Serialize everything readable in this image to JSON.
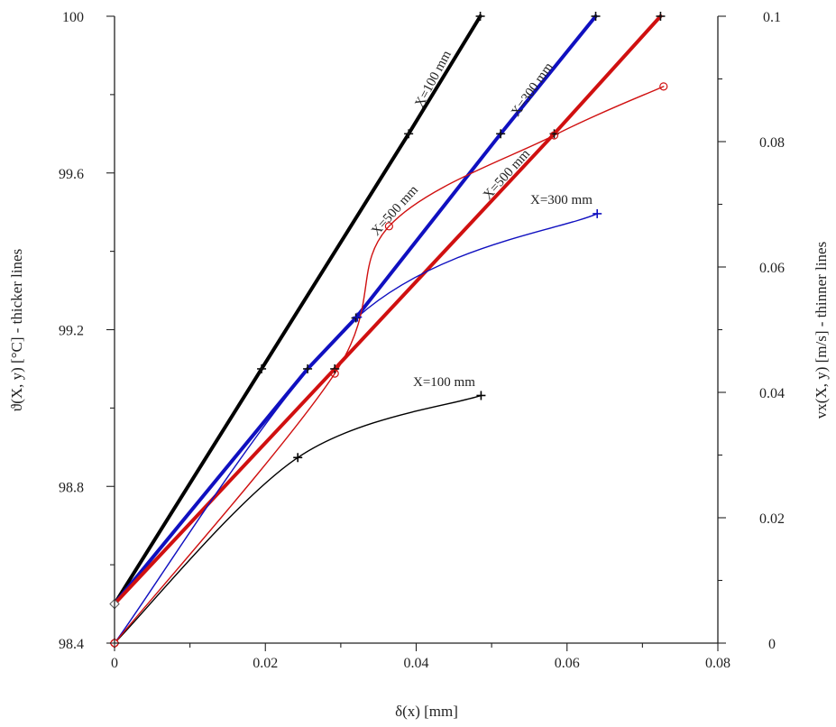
{
  "chart_data": {
    "type": "line",
    "xlabel": "δ(x) [mm]",
    "ylabel_left": "ϑ(X, y) [°C] - thicker lines",
    "ylabel_right": "vx(X, y) [m/s] - thinner lines",
    "xlim": [
      0,
      0.08
    ],
    "ylim_left": [
      98.4,
      100
    ],
    "ylim_right": [
      0,
      0.1
    ],
    "x_ticks": [
      "0",
      "0.02",
      "0.04",
      "0.06",
      "0.08"
    ],
    "y_left_ticks": [
      "98.4",
      "98.8",
      "99.2",
      "99.6",
      "100"
    ],
    "y_right_ticks": [
      "0",
      "0.02",
      "0.04",
      "0.06",
      "0.08",
      "0.1"
    ],
    "grid": false,
    "series": [
      {
        "name": "X=100 mm",
        "axis": "left",
        "style": "thick",
        "color": "#000000",
        "x": [
          0,
          0.0195,
          0.039,
          0.0485
        ],
        "y": [
          98.5,
          99.1,
          99.7,
          100.0
        ]
      },
      {
        "name": "X=300 mm",
        "axis": "left",
        "style": "thick",
        "color": "#1010c0",
        "x": [
          0,
          0.0256,
          0.032,
          0.0512,
          0.0638
        ],
        "y": [
          98.5,
          99.1,
          99.23,
          99.7,
          100.0
        ]
      },
      {
        "name": "X=500 mm",
        "axis": "left",
        "style": "thick",
        "color": "#d01010",
        "x": [
          0,
          0.0292,
          0.0583,
          0.0724
        ],
        "y": [
          98.5,
          99.1,
          99.7,
          100.0
        ]
      },
      {
        "name": "X=100 mm",
        "axis": "right",
        "style": "thin",
        "color": "#000000",
        "x": [
          0,
          0.0243,
          0.0486
        ],
        "y": [
          0.0,
          0.0296,
          0.0395
        ]
      },
      {
        "name": "X=300 mm",
        "axis": "right",
        "style": "thin",
        "color": "#1010c0",
        "x": [
          0,
          0.0322,
          0.064
        ],
        "y": [
          0.0,
          0.052,
          0.0685
        ]
      },
      {
        "name": "X=500 mm",
        "axis": "right",
        "style": "thin",
        "color": "#d01010",
        "x": [
          0,
          0.0292,
          0.0364,
          0.0583,
          0.0728
        ],
        "y": [
          0.0,
          0.043,
          0.0665,
          0.081,
          0.0888
        ]
      }
    ],
    "annotations": [
      "X=100 mm",
      "X=300 mm",
      "X=500 mm",
      "X=500 mm",
      "X=300 mm",
      "X=100 mm"
    ]
  }
}
